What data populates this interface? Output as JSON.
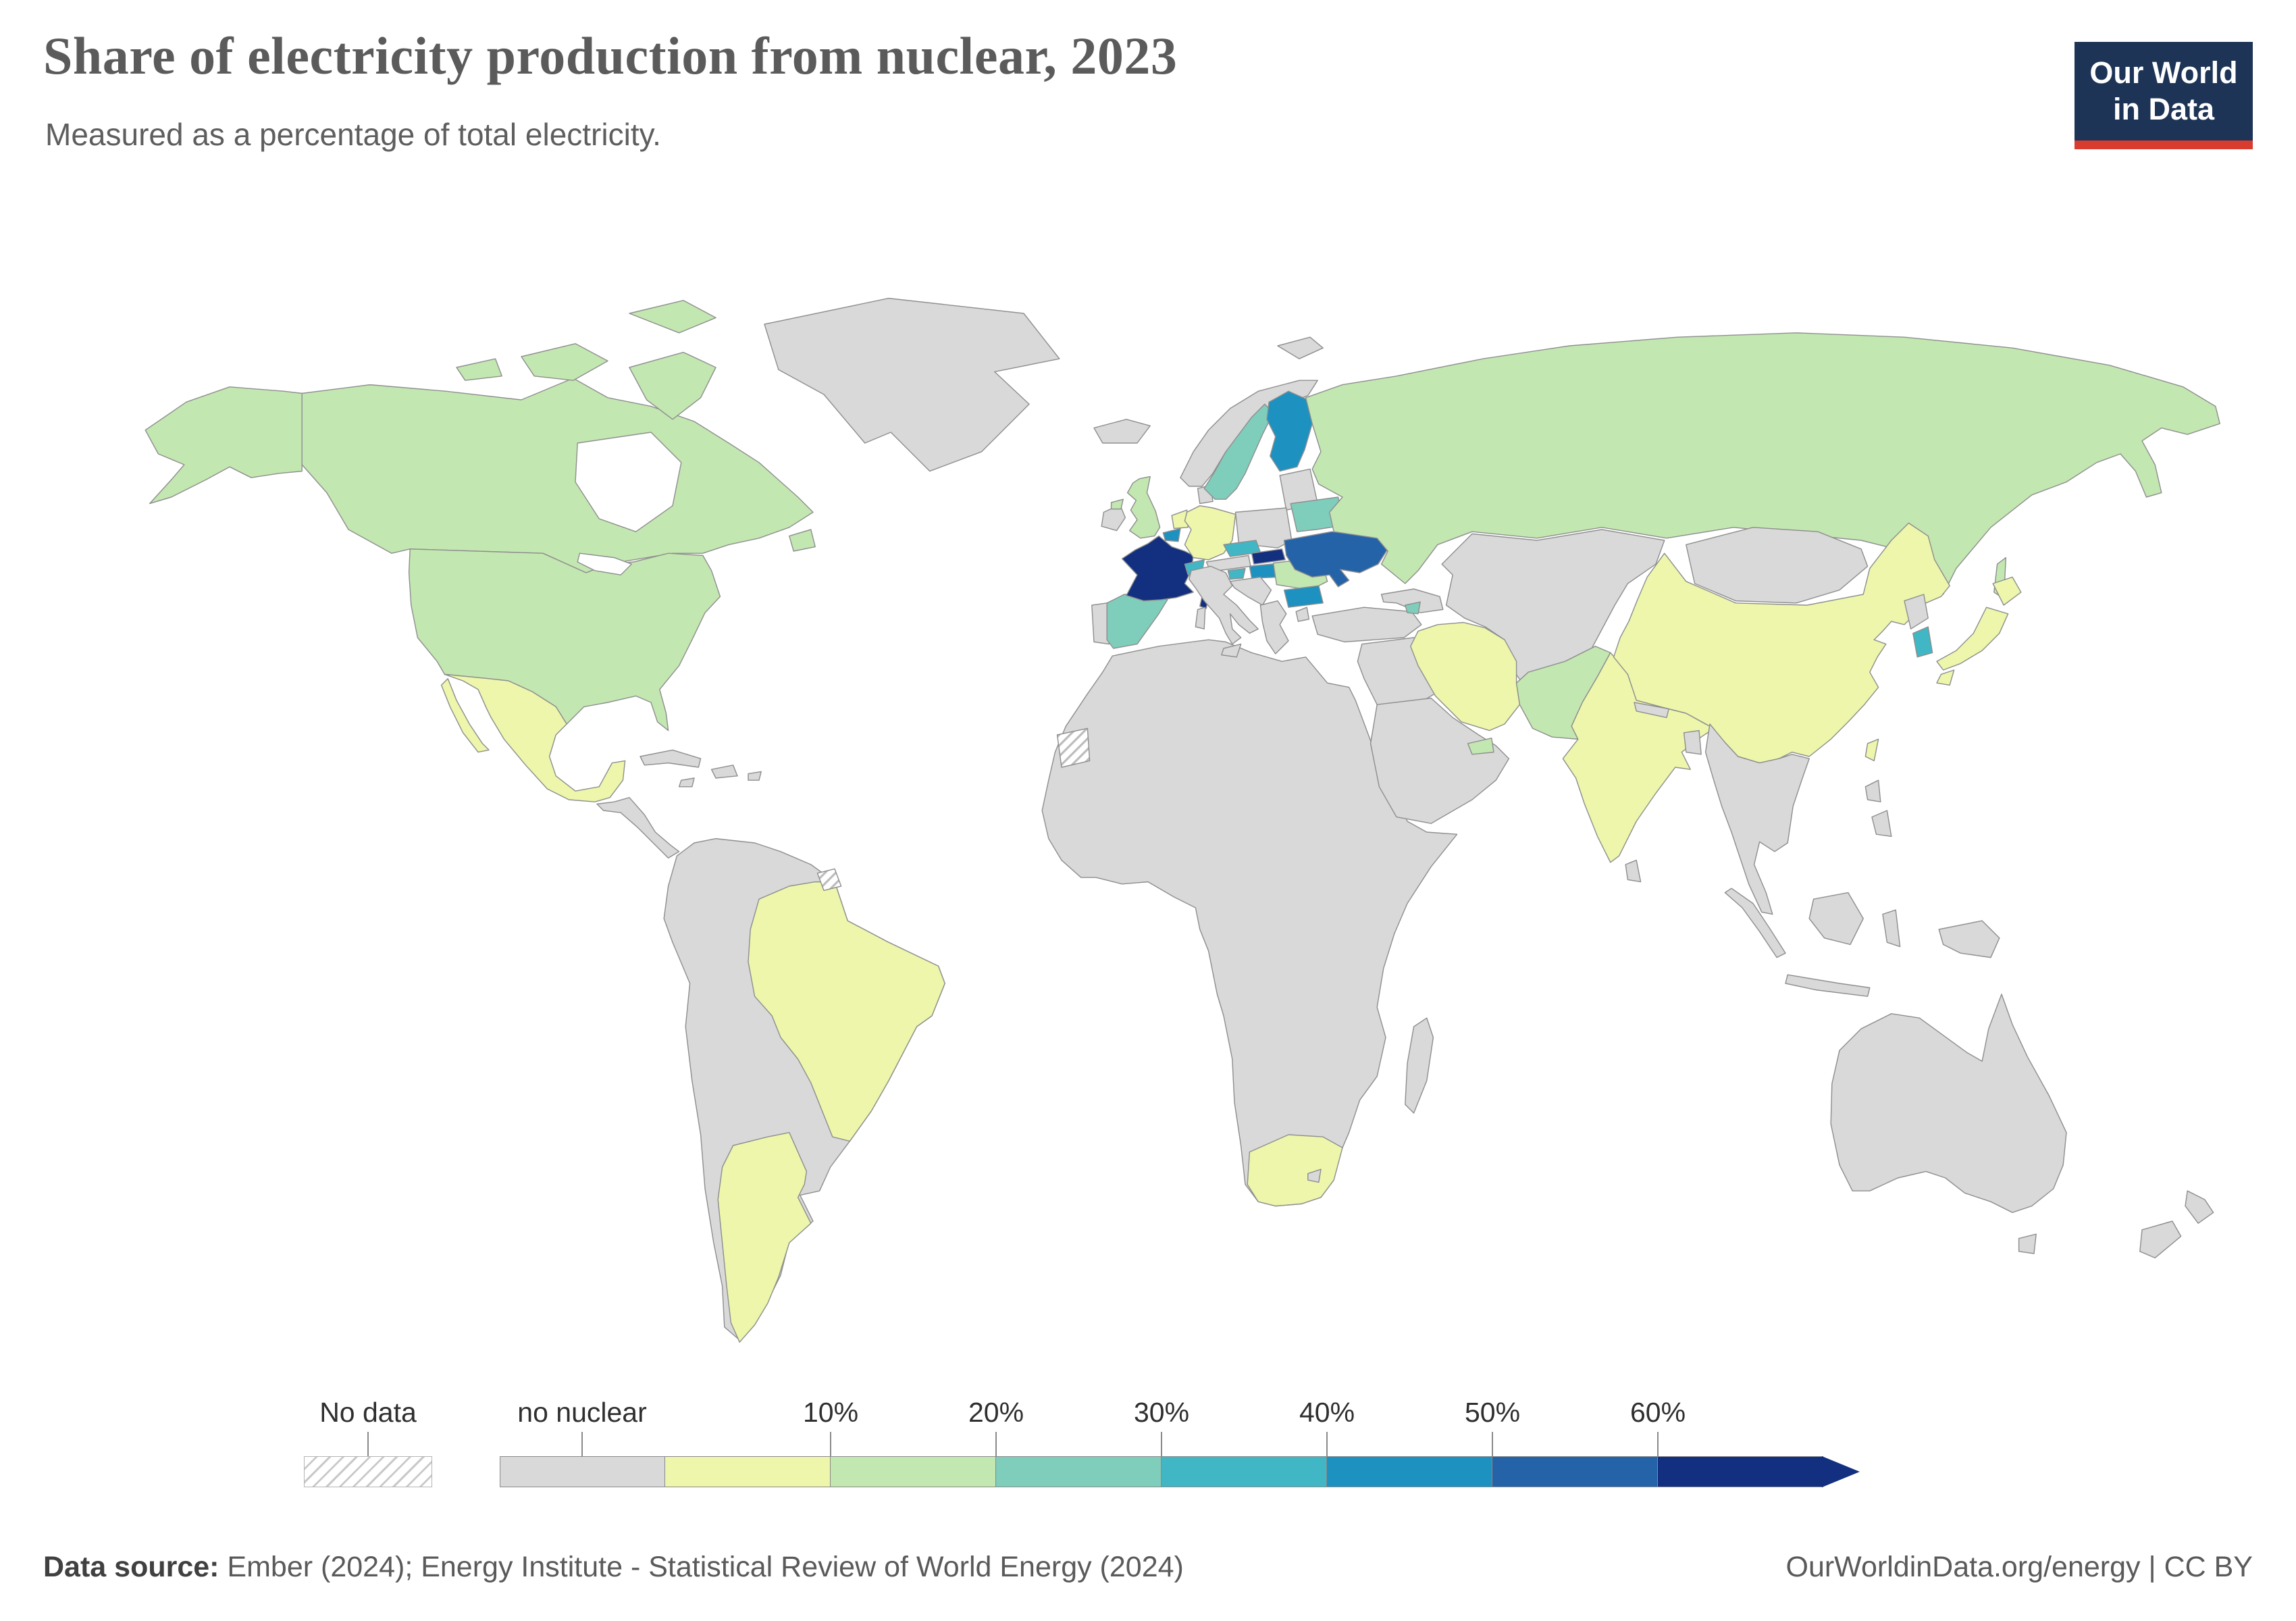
{
  "header": {
    "title": "Share of electricity production from nuclear, 2023",
    "subtitle": "Measured as a percentage of total electricity.",
    "logo": {
      "line1": "Our World",
      "line2": "in Data",
      "bg": "#1d3456",
      "accent": "#d73c2e"
    }
  },
  "legend": {
    "no_data_label": "No data",
    "no_nuclear_label": "no nuclear",
    "ticks": [
      "10%",
      "20%",
      "30%",
      "40%",
      "50%",
      "60%"
    ],
    "segments": [
      {
        "key": "no_nuclear",
        "color": "#d9d9d9"
      },
      {
        "key": "0_10",
        "color": "#edf6ab"
      },
      {
        "key": "10_20",
        "color": "#c3e7b1"
      },
      {
        "key": "20_30",
        "color": "#7fcdbb"
      },
      {
        "key": "30_40",
        "color": "#41b6c4"
      },
      {
        "key": "40_50",
        "color": "#1d91c0"
      },
      {
        "key": "50_60",
        "color": "#2563a8"
      },
      {
        "key": "60_plus",
        "color": "#122f80",
        "arrow": true
      }
    ]
  },
  "footer": {
    "source_label": "Data source:",
    "source_text": " Ember (2024); Energy Institute - Statistical Review of World Energy (2024)",
    "right_text": "OurWorldinData.org/energy | CC BY"
  },
  "map": {
    "ocean": "#ffffff",
    "border_color": "#8f8f8f",
    "palette": {
      "no_data": "hatch",
      "no_nuclear": "#d9d9d9",
      "0_10": "#edf6ab",
      "10_20": "#c3e7b1",
      "20_30": "#7fcdbb",
      "30_40": "#41b6c4",
      "40_50": "#1d91c0",
      "50_60": "#2563a8",
      "60_plus": "#122f80"
    },
    "countries": {
      "united_states": "10_20",
      "canada": "10_20",
      "greenland": "no_nuclear",
      "iceland": "no_nuclear",
      "mexico": "0_10",
      "central_america": "no_nuclear",
      "cuba": "no_nuclear",
      "caribbean": "no_nuclear",
      "south_america_other": "no_nuclear",
      "brazil": "0_10",
      "argentina": "0_10",
      "french_guiana": "no_data",
      "africa_other": "no_nuclear",
      "south_africa": "0_10",
      "lesotho": "no_nuclear",
      "western_sahara": "no_data",
      "madagascar": "no_nuclear",
      "ireland": "no_nuclear",
      "united_kingdom": "10_20",
      "portugal": "no_nuclear",
      "spain": "20_30",
      "france": "60_plus",
      "belgium": "40_50",
      "netherlands": "0_10",
      "germany": "0_10",
      "denmark": "no_nuclear",
      "norway": "no_nuclear",
      "sweden": "20_30",
      "finland": "40_50",
      "baltic_states": "no_nuclear",
      "poland": "no_nuclear",
      "czechia": "30_40",
      "slovakia": "60_plus",
      "austria": "no_nuclear",
      "switzerland": "30_40",
      "hungary": "40_50",
      "slovenia": "30_40",
      "italy": "no_nuclear",
      "balkans": "no_nuclear",
      "greece_region": "no_nuclear",
      "romania": "10_20",
      "bulgaria": "40_50",
      "moldova": "no_nuclear",
      "ukraine": "50_60",
      "belarus": "20_30",
      "turkey": "no_nuclear",
      "caucasus_other": "no_nuclear",
      "armenia": "20_30",
      "russia": "10_20",
      "svalbard": "no_nuclear",
      "central_asia": "no_nuclear",
      "mongolia": "no_nuclear",
      "levant_iraq": "no_nuclear",
      "arabia": "no_nuclear",
      "united_arab_emirates": "10_20",
      "iran": "0_10",
      "pakistan": "10_20",
      "india": "0_10",
      "nepal": "no_nuclear",
      "bangladesh": "no_nuclear",
      "sri_lanka": "no_nuclear",
      "china": "0_10",
      "north_korea": "no_nuclear",
      "south_korea": "30_40",
      "japan": "0_10",
      "taiwan": "0_10",
      "southeast_asia": "no_nuclear",
      "indonesia": "no_nuclear",
      "philippines": "no_nuclear",
      "new_guinea": "no_nuclear",
      "australia": "no_nuclear",
      "new_zealand": "no_nuclear"
    }
  },
  "chart_data": {
    "type": "heatmap",
    "subtype": "choropleth-world-map",
    "title": "Share of electricity production from nuclear, 2023",
    "subtitle": "Measured as a percentage of total electricity.",
    "unit": "% of total electricity",
    "year": 2023,
    "legend_position": "bottom",
    "bins": [
      "No data",
      "no nuclear",
      "0-10%",
      "10-20%",
      "20-30%",
      "30-40%",
      "40-50%",
      "50-60%",
      "60%+"
    ],
    "bin_colors": [
      "hatched-white",
      "#d9d9d9",
      "#edf6ab",
      "#c3e7b1",
      "#7fcdbb",
      "#41b6c4",
      "#1d91c0",
      "#2563a8",
      "#122f80"
    ],
    "values": {
      "United States": "10-20%",
      "Canada": "10-20%",
      "Russia": "10-20%",
      "United Kingdom": "10-20%",
      "Romania": "10-20%",
      "Pakistan": "10-20%",
      "United Arab Emirates": "10-20%",
      "Mexico": "0-10%",
      "Brazil": "0-10%",
      "Argentina": "0-10%",
      "South Africa": "0-10%",
      "India": "0-10%",
      "China": "0-10%",
      "Japan": "0-10%",
      "Taiwan": "0-10%",
      "Iran": "0-10%",
      "Netherlands": "0-10%",
      "Germany": "0-10%",
      "Spain": "20-30%",
      "Sweden": "20-30%",
      "Belarus": "20-30%",
      "Armenia": "20-30%",
      "Switzerland": "30-40%",
      "Czechia": "30-40%",
      "Slovenia": "30-40%",
      "South Korea": "30-40%",
      "Finland": "40-50%",
      "Belgium": "40-50%",
      "Hungary": "40-50%",
      "Bulgaria": "40-50%",
      "Ukraine": "50-60%",
      "France": "60%+",
      "Slovakia": "60%+",
      "Western Sahara": "No data",
      "French Guiana": "No data",
      "Rest of world shown in grey": "no nuclear"
    },
    "source": "Ember (2024); Energy Institute - Statistical Review of World Energy (2024)"
  }
}
